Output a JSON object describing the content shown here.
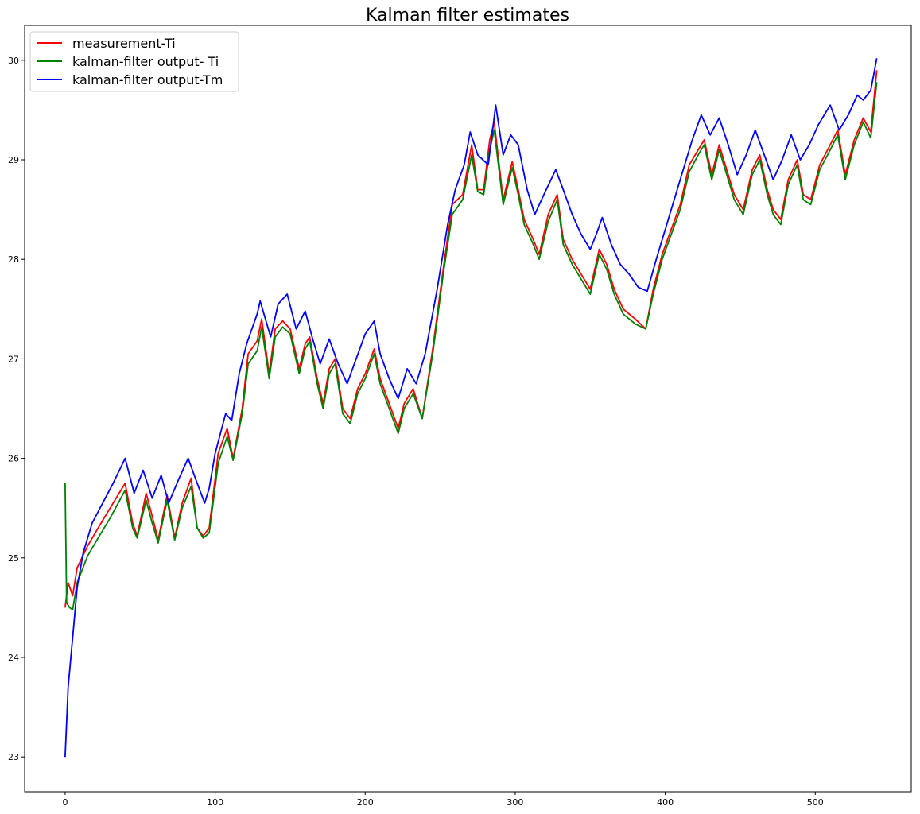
{
  "chart_data": {
    "type": "line",
    "title": "Kalman filter estimates",
    "xlabel": "",
    "ylabel": "",
    "xlim": [
      -27,
      564
    ],
    "ylim": [
      22.65,
      30.35
    ],
    "x_ticks": [
      0,
      100,
      200,
      300,
      400,
      500
    ],
    "y_ticks": [
      23,
      24,
      25,
      26,
      27,
      28,
      29,
      30
    ],
    "grid": false,
    "legend_position": "top-left",
    "series": [
      {
        "name": "measurement-Ti",
        "color": "#ff0000",
        "points": [
          [
            0,
            24.5
          ],
          [
            2,
            24.75
          ],
          [
            5,
            24.62
          ],
          [
            8,
            24.9
          ],
          [
            15,
            25.12
          ],
          [
            22,
            25.3
          ],
          [
            30,
            25.5
          ],
          [
            40,
            25.75
          ],
          [
            45,
            25.35
          ],
          [
            48,
            25.22
          ],
          [
            54,
            25.65
          ],
          [
            58,
            25.42
          ],
          [
            62,
            25.18
          ],
          [
            68,
            25.63
          ],
          [
            73,
            25.2
          ],
          [
            78,
            25.55
          ],
          [
            84,
            25.8
          ],
          [
            88,
            25.3
          ],
          [
            92,
            25.22
          ],
          [
            96,
            25.3
          ],
          [
            102,
            26.05
          ],
          [
            108,
            26.3
          ],
          [
            112,
            26.0
          ],
          [
            118,
            26.5
          ],
          [
            122,
            27.05
          ],
          [
            128,
            27.18
          ],
          [
            131,
            27.4
          ],
          [
            136,
            26.85
          ],
          [
            140,
            27.3
          ],
          [
            145,
            27.38
          ],
          [
            150,
            27.3
          ],
          [
            156,
            26.9
          ],
          [
            160,
            27.15
          ],
          [
            163,
            27.22
          ],
          [
            168,
            26.8
          ],
          [
            172,
            26.55
          ],
          [
            176,
            26.9
          ],
          [
            180,
            27.0
          ],
          [
            185,
            26.5
          ],
          [
            190,
            26.4
          ],
          [
            195,
            26.7
          ],
          [
            200,
            26.85
          ],
          [
            206,
            27.1
          ],
          [
            210,
            26.8
          ],
          [
            216,
            26.55
          ],
          [
            222,
            26.3
          ],
          [
            226,
            26.55
          ],
          [
            232,
            26.7
          ],
          [
            238,
            26.4
          ],
          [
            245,
            27.1
          ],
          [
            252,
            27.9
          ],
          [
            258,
            28.55
          ],
          [
            265,
            28.65
          ],
          [
            271,
            29.15
          ],
          [
            275,
            28.7
          ],
          [
            279,
            28.7
          ],
          [
            283,
            29.2
          ],
          [
            286,
            29.38
          ],
          [
            292,
            28.6
          ],
          [
            298,
            28.98
          ],
          [
            302,
            28.7
          ],
          [
            306,
            28.4
          ],
          [
            312,
            28.2
          ],
          [
            316,
            28.05
          ],
          [
            322,
            28.45
          ],
          [
            328,
            28.65
          ],
          [
            332,
            28.2
          ],
          [
            338,
            28.0
          ],
          [
            344,
            27.85
          ],
          [
            350,
            27.7
          ],
          [
            356,
            28.1
          ],
          [
            361,
            27.95
          ],
          [
            366,
            27.7
          ],
          [
            372,
            27.5
          ],
          [
            380,
            27.4
          ],
          [
            387,
            27.3
          ],
          [
            392,
            27.7
          ],
          [
            398,
            28.05
          ],
          [
            404,
            28.3
          ],
          [
            410,
            28.55
          ],
          [
            416,
            28.95
          ],
          [
            422,
            29.1
          ],
          [
            426,
            29.2
          ],
          [
            431,
            28.85
          ],
          [
            436,
            29.15
          ],
          [
            441,
            28.9
          ],
          [
            446,
            28.65
          ],
          [
            452,
            28.5
          ],
          [
            458,
            28.9
          ],
          [
            463,
            29.05
          ],
          [
            468,
            28.7
          ],
          [
            472,
            28.5
          ],
          [
            477,
            28.4
          ],
          [
            482,
            28.8
          ],
          [
            488,
            29.0
          ],
          [
            492,
            28.65
          ],
          [
            497,
            28.6
          ],
          [
            503,
            28.95
          ],
          [
            510,
            29.15
          ],
          [
            515,
            29.3
          ],
          [
            520,
            28.85
          ],
          [
            526,
            29.2
          ],
          [
            532,
            29.42
          ],
          [
            537,
            29.28
          ],
          [
            541,
            29.9
          ]
        ]
      },
      {
        "name": "kalman-filter output- Ti",
        "color": "#008000",
        "points": [
          [
            0,
            25.75
          ],
          [
            1,
            24.55
          ],
          [
            3,
            24.5
          ],
          [
            5,
            24.48
          ],
          [
            8,
            24.75
          ],
          [
            15,
            25.02
          ],
          [
            22,
            25.2
          ],
          [
            30,
            25.4
          ],
          [
            40,
            25.68
          ],
          [
            45,
            25.3
          ],
          [
            48,
            25.2
          ],
          [
            54,
            25.58
          ],
          [
            58,
            25.35
          ],
          [
            62,
            25.15
          ],
          [
            68,
            25.58
          ],
          [
            73,
            25.18
          ],
          [
            78,
            25.5
          ],
          [
            84,
            25.72
          ],
          [
            88,
            25.3
          ],
          [
            92,
            25.2
          ],
          [
            96,
            25.25
          ],
          [
            102,
            25.95
          ],
          [
            108,
            26.22
          ],
          [
            112,
            25.98
          ],
          [
            118,
            26.45
          ],
          [
            122,
            26.95
          ],
          [
            128,
            27.08
          ],
          [
            131,
            27.32
          ],
          [
            136,
            26.8
          ],
          [
            140,
            27.22
          ],
          [
            145,
            27.32
          ],
          [
            150,
            27.25
          ],
          [
            156,
            26.85
          ],
          [
            160,
            27.1
          ],
          [
            163,
            27.18
          ],
          [
            168,
            26.75
          ],
          [
            172,
            26.5
          ],
          [
            176,
            26.85
          ],
          [
            180,
            26.95
          ],
          [
            185,
            26.45
          ],
          [
            190,
            26.35
          ],
          [
            195,
            26.65
          ],
          [
            200,
            26.8
          ],
          [
            206,
            27.05
          ],
          [
            210,
            26.75
          ],
          [
            216,
            26.5
          ],
          [
            222,
            26.25
          ],
          [
            226,
            26.5
          ],
          [
            232,
            26.65
          ],
          [
            238,
            26.4
          ],
          [
            245,
            27.05
          ],
          [
            252,
            27.85
          ],
          [
            258,
            28.45
          ],
          [
            265,
            28.6
          ],
          [
            271,
            29.05
          ],
          [
            275,
            28.68
          ],
          [
            279,
            28.65
          ],
          [
            283,
            29.1
          ],
          [
            286,
            29.3
          ],
          [
            292,
            28.55
          ],
          [
            298,
            28.92
          ],
          [
            302,
            28.65
          ],
          [
            306,
            28.35
          ],
          [
            312,
            28.15
          ],
          [
            316,
            28.0
          ],
          [
            322,
            28.38
          ],
          [
            328,
            28.6
          ],
          [
            332,
            28.15
          ],
          [
            338,
            27.95
          ],
          [
            344,
            27.8
          ],
          [
            350,
            27.65
          ],
          [
            356,
            28.05
          ],
          [
            361,
            27.9
          ],
          [
            366,
            27.65
          ],
          [
            372,
            27.45
          ],
          [
            380,
            27.35
          ],
          [
            387,
            27.3
          ],
          [
            392,
            27.65
          ],
          [
            398,
            28.0
          ],
          [
            404,
            28.25
          ],
          [
            410,
            28.5
          ],
          [
            416,
            28.88
          ],
          [
            422,
            29.05
          ],
          [
            426,
            29.15
          ],
          [
            431,
            28.8
          ],
          [
            436,
            29.1
          ],
          [
            441,
            28.85
          ],
          [
            446,
            28.6
          ],
          [
            452,
            28.45
          ],
          [
            458,
            28.85
          ],
          [
            463,
            29.0
          ],
          [
            468,
            28.65
          ],
          [
            472,
            28.45
          ],
          [
            477,
            28.35
          ],
          [
            482,
            28.75
          ],
          [
            488,
            28.95
          ],
          [
            492,
            28.6
          ],
          [
            497,
            28.55
          ],
          [
            503,
            28.9
          ],
          [
            510,
            29.1
          ],
          [
            515,
            29.25
          ],
          [
            520,
            28.8
          ],
          [
            526,
            29.15
          ],
          [
            532,
            29.38
          ],
          [
            537,
            29.22
          ],
          [
            541,
            29.78
          ]
        ]
      },
      {
        "name": "kalman-filter output-Tm",
        "color": "#0000ff",
        "points": [
          [
            0,
            23.0
          ],
          [
            2,
            23.7
          ],
          [
            5,
            24.2
          ],
          [
            8,
            24.7
          ],
          [
            12,
            25.05
          ],
          [
            18,
            25.35
          ],
          [
            25,
            25.55
          ],
          [
            32,
            25.75
          ],
          [
            40,
            26.0
          ],
          [
            46,
            25.65
          ],
          [
            52,
            25.88
          ],
          [
            58,
            25.6
          ],
          [
            64,
            25.83
          ],
          [
            69,
            25.55
          ],
          [
            76,
            25.8
          ],
          [
            82,
            26.0
          ],
          [
            88,
            25.75
          ],
          [
            93,
            25.55
          ],
          [
            96,
            25.7
          ],
          [
            100,
            26.05
          ],
          [
            107,
            26.45
          ],
          [
            111,
            26.38
          ],
          [
            116,
            26.85
          ],
          [
            121,
            27.15
          ],
          [
            128,
            27.45
          ],
          [
            130,
            27.58
          ],
          [
            137,
            27.22
          ],
          [
            142,
            27.55
          ],
          [
            148,
            27.65
          ],
          [
            154,
            27.3
          ],
          [
            160,
            27.48
          ],
          [
            165,
            27.2
          ],
          [
            170,
            26.95
          ],
          [
            176,
            27.2
          ],
          [
            182,
            26.95
          ],
          [
            188,
            26.75
          ],
          [
            194,
            27.0
          ],
          [
            200,
            27.25
          ],
          [
            206,
            27.38
          ],
          [
            210,
            27.05
          ],
          [
            216,
            26.8
          ],
          [
            222,
            26.6
          ],
          [
            228,
            26.9
          ],
          [
            234,
            26.75
          ],
          [
            240,
            27.05
          ],
          [
            248,
            27.7
          ],
          [
            255,
            28.35
          ],
          [
            260,
            28.7
          ],
          [
            266,
            28.95
          ],
          [
            270,
            29.28
          ],
          [
            275,
            29.05
          ],
          [
            282,
            28.95
          ],
          [
            287,
            29.55
          ],
          [
            292,
            29.05
          ],
          [
            297,
            29.25
          ],
          [
            302,
            29.15
          ],
          [
            308,
            28.7
          ],
          [
            313,
            28.45
          ],
          [
            320,
            28.68
          ],
          [
            327,
            28.9
          ],
          [
            332,
            28.7
          ],
          [
            338,
            28.45
          ],
          [
            344,
            28.25
          ],
          [
            350,
            28.1
          ],
          [
            354,
            28.25
          ],
          [
            358,
            28.42
          ],
          [
            364,
            28.15
          ],
          [
            370,
            27.95
          ],
          [
            376,
            27.85
          ],
          [
            382,
            27.72
          ],
          [
            388,
            27.68
          ],
          [
            394,
            28.0
          ],
          [
            400,
            28.3
          ],
          [
            406,
            28.6
          ],
          [
            412,
            28.9
          ],
          [
            418,
            29.2
          ],
          [
            424,
            29.45
          ],
          [
            430,
            29.25
          ],
          [
            436,
            29.42
          ],
          [
            442,
            29.15
          ],
          [
            448,
            28.85
          ],
          [
            454,
            29.05
          ],
          [
            460,
            29.3
          ],
          [
            466,
            29.05
          ],
          [
            472,
            28.8
          ],
          [
            478,
            29.0
          ],
          [
            484,
            29.25
          ],
          [
            490,
            29.0
          ],
          [
            496,
            29.15
          ],
          [
            502,
            29.35
          ],
          [
            510,
            29.55
          ],
          [
            516,
            29.3
          ],
          [
            522,
            29.45
          ],
          [
            528,
            29.65
          ],
          [
            532,
            29.6
          ],
          [
            537,
            29.7
          ],
          [
            541,
            30.02
          ]
        ]
      }
    ]
  }
}
